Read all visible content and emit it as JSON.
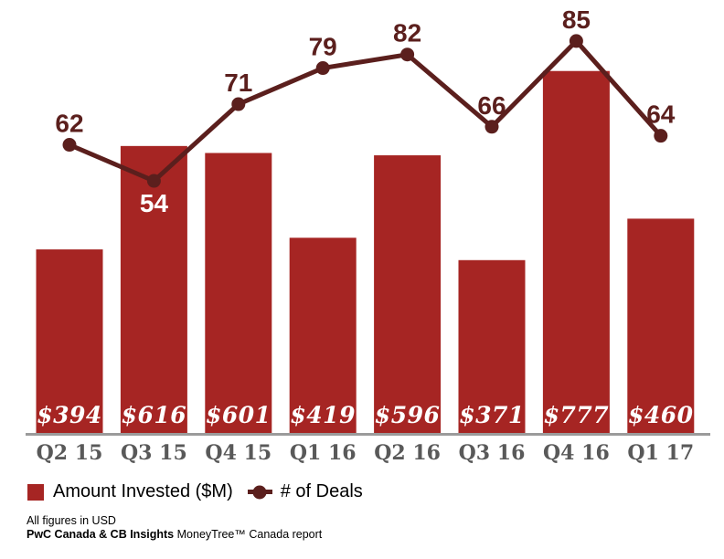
{
  "chart_data": {
    "type": "combo",
    "categories": [
      "Q2 15",
      "Q3 15",
      "Q4 15",
      "Q1 16",
      "Q2 16",
      "Q3 16",
      "Q4 16",
      "Q1 17"
    ],
    "series": [
      {
        "name": "Amount Invested ($M)",
        "type": "bar",
        "values": [
          394,
          616,
          601,
          419,
          596,
          371,
          777,
          460
        ],
        "data_labels": [
          "$394",
          "$616",
          "$601",
          "$419",
          "$596",
          "$371",
          "$777",
          "$460"
        ],
        "color": "#A62523",
        "label_color": "#FFFFFF"
      },
      {
        "name": "# of Deals",
        "type": "line",
        "values": [
          62,
          54,
          71,
          79,
          82,
          66,
          85,
          64
        ],
        "color": "#5B1F1D",
        "marker": "circle"
      }
    ],
    "title": "",
    "xlabel": "",
    "ylabel": "",
    "grid": false,
    "legend_position": "bottom-left",
    "axis_line_color": "#9B9B9B",
    "category_label_color": "#595959"
  },
  "legend": {
    "items": [
      {
        "label": "Amount Invested ($M)",
        "marker": "square",
        "color": "#A62523"
      },
      {
        "label": "# of Deals",
        "marker": "line-dot",
        "color": "#5B1F1D"
      }
    ]
  },
  "footer": {
    "line1": "All figures in USD",
    "line2_bold": "PwC Canada & CB Insights",
    "line2_rest": "MoneyTree™ Canada report"
  }
}
